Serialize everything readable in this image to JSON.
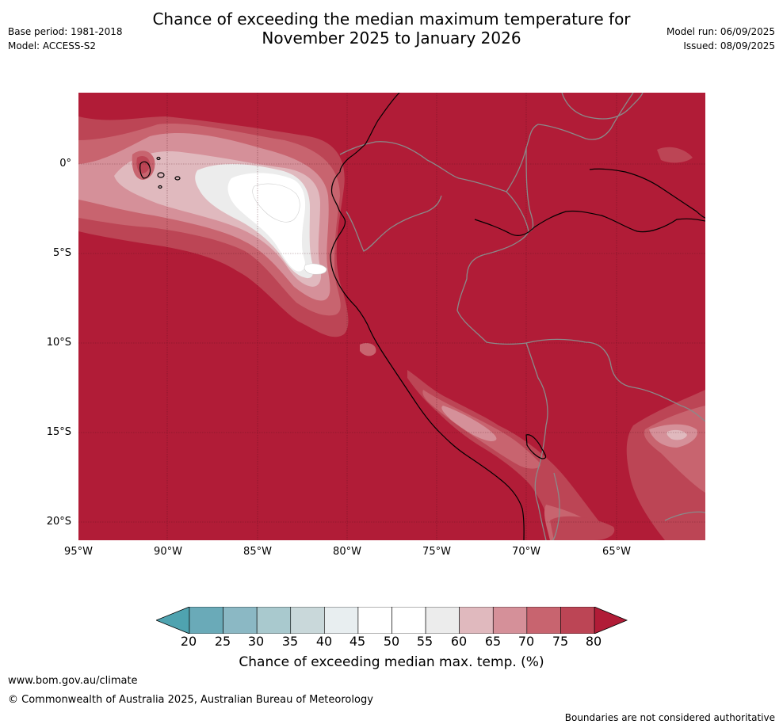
{
  "title": {
    "line1": "Chance of exceeding the median maximum temperature for",
    "line2": "November 2025 to January 2026"
  },
  "meta_left": {
    "base_period": "Base period: 1981-2018",
    "model": "Model: ACCESS-S2"
  },
  "meta_right": {
    "model_run": "Model run: 06/09/2025",
    "issued": "Issued: 08/09/2025"
  },
  "map": {
    "lat_labels": [
      "0°",
      "5°S",
      "10°S",
      "15°S",
      "20°S"
    ],
    "lon_labels": [
      "95°W",
      "90°W",
      "85°W",
      "80°W",
      "75°W",
      "70°W",
      "65°W"
    ]
  },
  "colorbar": {
    "title": "Chance of exceeding median max. temp. (%)",
    "ticks": [
      "20",
      "25",
      "30",
      "35",
      "40",
      "45",
      "50",
      "55",
      "60",
      "65",
      "70",
      "75",
      "80"
    ],
    "colors": [
      "#6aaab8",
      "#8bb8c4",
      "#a9c9ce",
      "#c9d8da",
      "#e8eef0",
      "#ffffff",
      "#ffffff",
      "#ececec",
      "#e0b9be",
      "#d59099",
      "#c8646f",
      "#bc4555"
    ],
    "low_extend_color": "#4fa3b0",
    "high_extend_color": "#b11c37"
  },
  "footer": {
    "website": "www.bom.gov.au/climate",
    "copyright": "© Commonwealth of Australia 2025, Australian Bureau of Meteorology",
    "disclaimer": "Boundaries are not considered authoritative"
  }
}
